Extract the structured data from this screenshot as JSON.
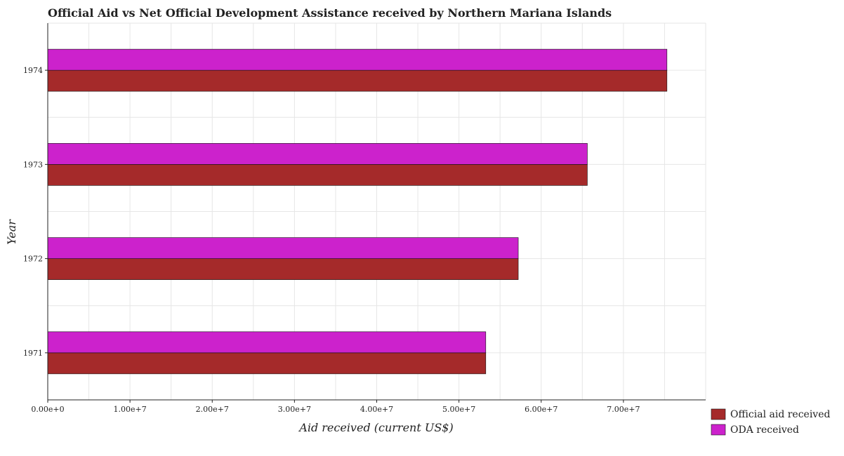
{
  "chart_data": {
    "type": "bar",
    "orientation": "horizontal",
    "title": "Official Aid vs Net Official Development Assistance received by Northern Mariana Islands",
    "xlabel": "Aid received (current US$)",
    "ylabel": "Year",
    "categories": [
      "1971",
      "1972",
      "1973",
      "1974"
    ],
    "series": [
      {
        "name": "Official aid received",
        "color": "#a52a2a",
        "values": [
          53260000,
          57210000,
          65610000,
          75290000
        ]
      },
      {
        "name": "ODA received",
        "color": "#cc22cc",
        "values": [
          53260000,
          57210000,
          65610000,
          75290000
        ]
      }
    ],
    "xlim": [
      0,
      80000000
    ],
    "xticks": [
      0,
      10000000,
      20000000,
      30000000,
      40000000,
      50000000,
      60000000,
      70000000
    ],
    "xtick_labels": [
      "0.00e+0",
      "1.00e+7",
      "2.00e+7",
      "3.00e+7",
      "4.00e+7",
      "5.00e+7",
      "6.00e+7",
      "7.00e+7"
    ],
    "grid": true,
    "legend_position": "bottom-right"
  }
}
